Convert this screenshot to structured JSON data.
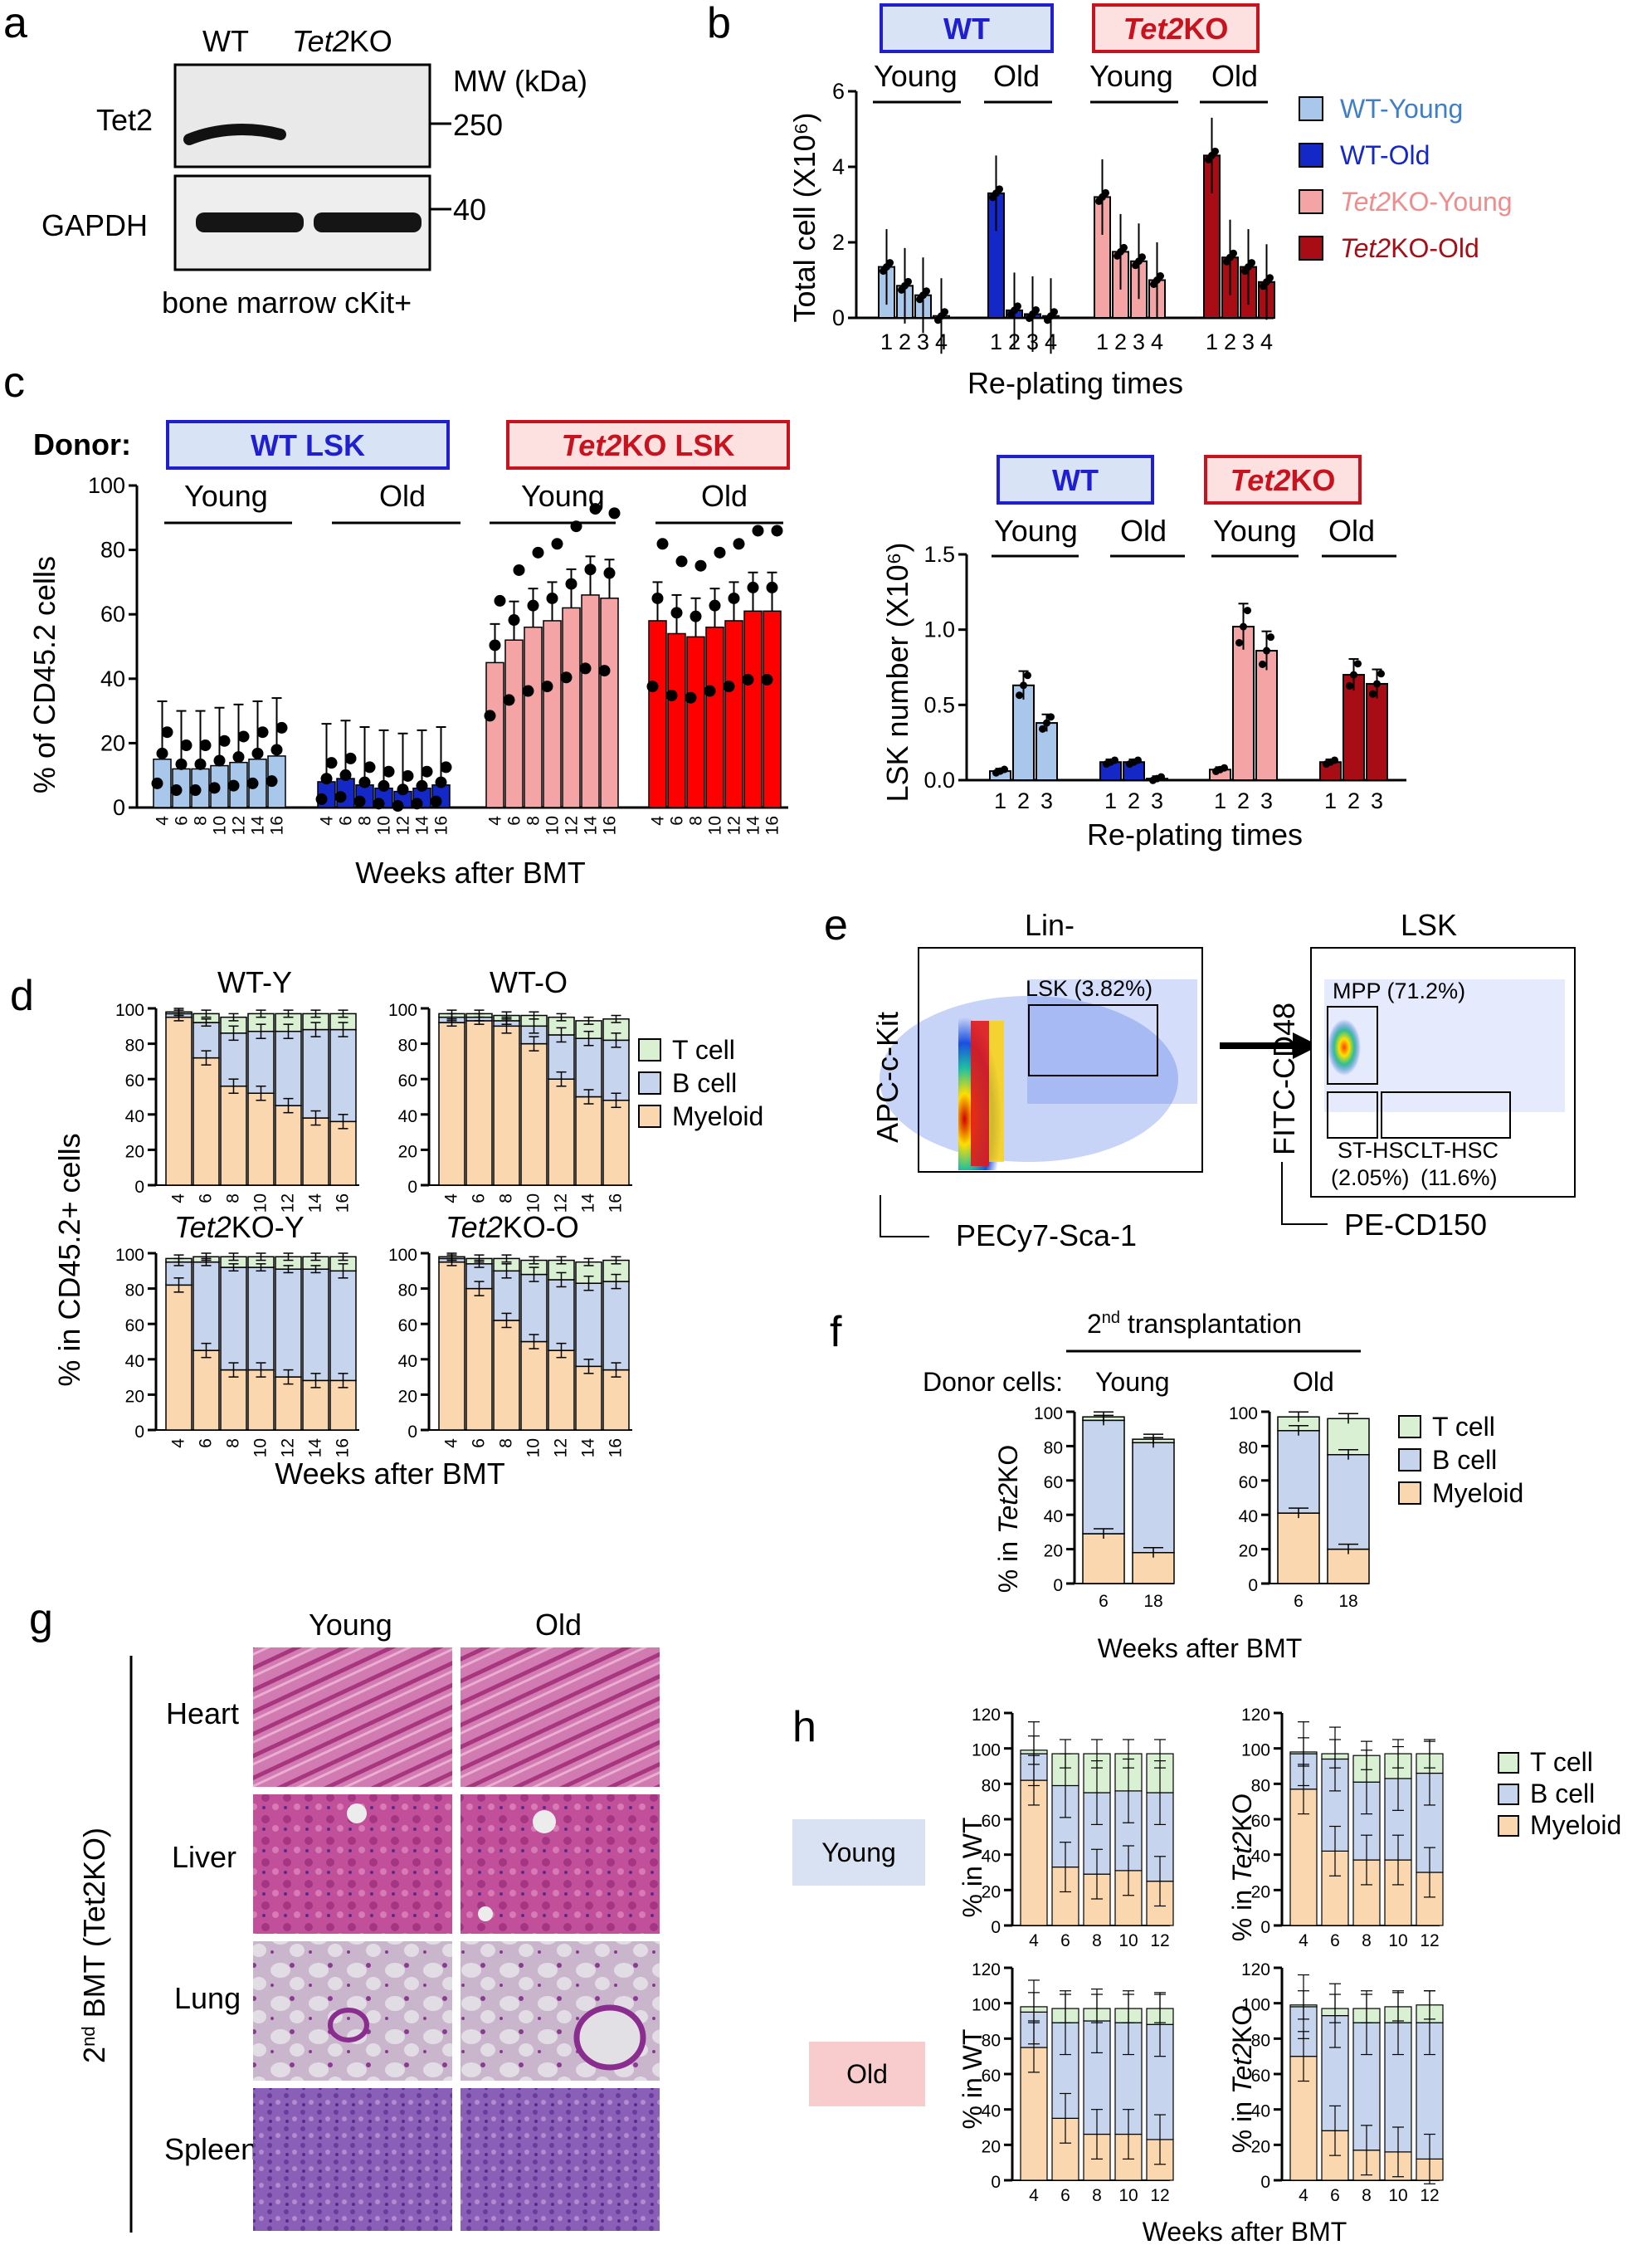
{
  "panels": {
    "a": "a",
    "b": "b",
    "c": "c",
    "d": "d",
    "e": "e",
    "f": "f",
    "g": "g",
    "h": "h"
  },
  "colors": {
    "wt_young": "#a9c6eb",
    "wt_old": "#1428c8",
    "ko_young": "#f4a4a4",
    "ko_old": "#a80c14",
    "ko_old_c": "#ff0000",
    "tcell": "#d9f0d3",
    "bcell": "#c6d4ee",
    "myeloid": "#fad7ae",
    "wt_box": "#1f1fd0",
    "ko_box": "#c8121e",
    "wt_box_fill": "#d8e4f5",
    "ko_box_fill": "#fde0e0",
    "young_box": "#d9e2f2",
    "old_box": "#f8cccc"
  },
  "a": {
    "lane_wt": "WT",
    "lane_ko_i": "Tet2",
    "lane_ko_r": "KO",
    "mw": "MW (kDa)",
    "row1": "Tet2",
    "row2": "GAPDH",
    "mw1": "250",
    "mw2": "40",
    "caption": "bone marrow cKit+"
  },
  "b": {
    "chart_data": {
      "type": "bar",
      "ylabel": "Total cell (X10⁶)",
      "xlabel": "Re-plating times",
      "ylim": [
        0,
        6
      ],
      "yticks": [
        "0",
        "2",
        "4",
        "6"
      ],
      "groups": [
        {
          "name": "WT-Young",
          "values": [
            1.35,
            0.85,
            0.6,
            0.05
          ]
        },
        {
          "name": "WT-Old",
          "values": [
            3.3,
            0.2,
            0.1,
            0.05
          ]
        },
        {
          "name": "Tet2KO-Young",
          "values": [
            3.2,
            1.75,
            1.5,
            1.0
          ]
        },
        {
          "name": "Tet2KO-Old",
          "values": [
            4.3,
            1.6,
            1.35,
            0.95
          ]
        }
      ],
      "categories": [
        "1",
        "2",
        "3",
        "4"
      ]
    },
    "box_wt": "WT",
    "box_ko_i": "Tet2",
    "box_ko_r": "KO",
    "young": "Young",
    "old": "Old",
    "legend": [
      {
        "i": "",
        "r": "WT-Young"
      },
      {
        "i": "",
        "r": "WT-Old"
      },
      {
        "i": "Tet2",
        "r": "KO-Young"
      },
      {
        "i": "Tet2",
        "r": "KO-Old"
      }
    ]
  },
  "c1": {
    "chart_data": {
      "type": "bar",
      "ylabel": "% of CD45.2 cells",
      "xlabel": "Weeks after BMT",
      "ylim": [
        0,
        100
      ],
      "yticks": [
        "0",
        "20",
        "40",
        "60",
        "80",
        "100"
      ],
      "categories": [
        "4",
        "6",
        "8",
        "10",
        "12",
        "14",
        "16"
      ],
      "groups": [
        {
          "name": "WT LSK Young",
          "values": [
            15,
            12,
            12,
            13,
            14,
            15,
            16
          ]
        },
        {
          "name": "WT LSK Old",
          "values": [
            8,
            9,
            7,
            6,
            5,
            6,
            7
          ]
        },
        {
          "name": "Tet2KO LSK Young",
          "values": [
            45,
            52,
            56,
            58,
            62,
            66,
            65
          ]
        },
        {
          "name": "Tet2KO LSK Old",
          "values": [
            58,
            54,
            53,
            56,
            58,
            61,
            61
          ]
        }
      ]
    },
    "donor": "Donor:",
    "box_wt": "WT LSK",
    "box_ko_i": "Tet2",
    "box_ko_r": "KO LSK",
    "young": "Young",
    "old": "Old"
  },
  "c2": {
    "chart_data": {
      "type": "bar",
      "ylabel": "LSK number (X10⁶)",
      "xlabel": "Re-plating times",
      "ylim": [
        0,
        1.5
      ],
      "yticks": [
        "0.0",
        "0.5",
        "1.0",
        "1.5"
      ],
      "categories": [
        "1",
        "2",
        "3"
      ],
      "groups": [
        {
          "name": "WT-Young",
          "values": [
            0.06,
            0.63,
            0.38
          ]
        },
        {
          "name": "WT-Old",
          "values": [
            0.12,
            0.12,
            0.01
          ]
        },
        {
          "name": "Tet2KO-Young",
          "values": [
            0.07,
            1.02,
            0.86
          ]
        },
        {
          "name": "Tet2KO-Old",
          "values": [
            0.12,
            0.7,
            0.64
          ]
        }
      ]
    },
    "box_wt": "WT",
    "box_ko_i": "Tet2",
    "box_ko_r": "KO",
    "young": "Young",
    "old": "Old"
  },
  "d": {
    "chart_data": {
      "type": "bar",
      "ylabel": "% in CD45.2+ cells",
      "xlabel": "Weeks after BMT",
      "ylim": [
        0,
        100
      ],
      "yticks": [
        "0",
        "20",
        "40",
        "60",
        "80",
        "100"
      ],
      "categories": [
        "4",
        "6",
        "8",
        "10",
        "12",
        "14",
        "16"
      ],
      "stack": [
        "Myeloid",
        "B cell",
        "T cell"
      ],
      "panels": [
        {
          "title": "WT-Y",
          "myeloid": [
            95,
            72,
            56,
            52,
            45,
            38,
            36
          ],
          "bcell": [
            2,
            20,
            30,
            35,
            42,
            50,
            52
          ],
          "tcell": [
            1,
            5,
            9,
            10,
            10,
            9,
            9
          ]
        },
        {
          "title": "WT-O",
          "myeloid": [
            92,
            93,
            90,
            80,
            60,
            50,
            48
          ],
          "bcell": [
            3,
            2,
            3,
            10,
            25,
            33,
            34
          ],
          "tcell": [
            2,
            2,
            3,
            6,
            10,
            10,
            12
          ]
        },
        {
          "title": "Tet2KO-Y",
          "myeloid": [
            82,
            45,
            34,
            34,
            30,
            28,
            28
          ],
          "bcell": [
            13,
            50,
            58,
            58,
            61,
            63,
            62
          ],
          "tcell": [
            2,
            3,
            6,
            6,
            7,
            7,
            8
          ]
        },
        {
          "title": "Tet2KO-O",
          "myeloid": [
            95,
            80,
            62,
            50,
            45,
            36,
            34
          ],
          "bcell": [
            2,
            14,
            28,
            38,
            40,
            47,
            50
          ],
          "tcell": [
            1,
            3,
            7,
            8,
            11,
            12,
            12
          ]
        }
      ]
    },
    "titles": [
      {
        "i": "",
        "r": "WT-Y"
      },
      {
        "i": "",
        "r": "WT-O"
      },
      {
        "i": "Tet2",
        "r": "KO-Y"
      },
      {
        "i": "Tet2",
        "r": "KO-O"
      }
    ],
    "legend": [
      "T cell",
      "B cell",
      "Myeloid"
    ]
  },
  "e": {
    "plot1_title": "Lin-",
    "plot2_title": "LSK",
    "gate1": "LSK (3.82%)",
    "gate_mpp": "MPP (71.2%)",
    "gate_st": "ST-HSC",
    "gate_st_pct": "(2.05%)",
    "gate_lt": "LT-HSC",
    "gate_lt_pct": "(11.6%)",
    "x1": "PECy7-Sca-1",
    "y1": "APC-c-Kit",
    "x2": "PE-CD150",
    "y2": "FITC-CD48"
  },
  "f": {
    "chart_data": {
      "type": "bar",
      "ylabel": "% in Tet2KO",
      "xlabel": "Weeks after BMT",
      "ylim": [
        0,
        100
      ],
      "yticks": [
        "0",
        "20",
        "40",
        "60",
        "80",
        "100"
      ],
      "categories": [
        "6",
        "18"
      ],
      "panels": [
        {
          "title": "Young",
          "myeloid": [
            29,
            18
          ],
          "bcell": [
            66,
            64
          ],
          "tcell": [
            2,
            2
          ]
        },
        {
          "title": "Old",
          "myeloid": [
            41,
            20
          ],
          "bcell": [
            48,
            55
          ],
          "tcell": [
            8,
            21
          ]
        }
      ]
    },
    "header_r": "2",
    "header_sup": "nd",
    "header_r2": " transplantation",
    "donor": "Donor cells:",
    "young": "Young",
    "old": "Old",
    "ylabel_r": "% in ",
    "ylabel_i": "Tet2",
    "ylabel_r2": "KO",
    "legend": [
      "T cell",
      "B cell",
      "Myeloid"
    ]
  },
  "g": {
    "col_young": "Young",
    "col_old": "Old",
    "rows": [
      "Heart",
      "Liver",
      "Lung",
      "Spleen"
    ],
    "side": "2",
    "side_sup": "nd",
    "side_r": " BMT (Tet2KO)"
  },
  "h": {
    "chart_data": {
      "type": "bar",
      "ylabel": "% in WT / % in Tet2KO",
      "xlabel": "Weeks after BMT",
      "ylim": [
        0,
        120
      ],
      "yticks": [
        "0",
        "20",
        "40",
        "60",
        "80",
        "100",
        "120"
      ],
      "categories": [
        "4",
        "6",
        "8",
        "10",
        "12"
      ],
      "panels": [
        {
          "title": "Young WT",
          "myeloid": [
            82,
            33,
            29,
            31,
            25
          ],
          "bcell": [
            15,
            46,
            46,
            45,
            50
          ],
          "tcell": [
            2,
            18,
            22,
            21,
            22
          ]
        },
        {
          "title": "Young Tet2KO",
          "myeloid": [
            77,
            42,
            37,
            37,
            30
          ],
          "bcell": [
            20,
            52,
            44,
            46,
            56
          ],
          "tcell": [
            1,
            3,
            15,
            14,
            11
          ]
        },
        {
          "title": "Old WT",
          "myeloid": [
            75,
            35,
            26,
            26,
            23
          ],
          "bcell": [
            20,
            54,
            64,
            63,
            65
          ],
          "tcell": [
            3,
            8,
            7,
            8,
            9
          ]
        },
        {
          "title": "Old Tet2KO",
          "myeloid": [
            70,
            28,
            17,
            16,
            12
          ],
          "bcell": [
            28,
            65,
            72,
            73,
            77
          ],
          "tcell": [
            1,
            4,
            8,
            9,
            10
          ]
        }
      ]
    },
    "young": "Young",
    "old": "Old",
    "yl_wt": "% in WT",
    "yl_ko_r": "% in ",
    "yl_ko_i": "Tet2",
    "yl_ko_r2": "KO",
    "legend": [
      "T cell",
      "B cell",
      "Myeloid"
    ]
  }
}
